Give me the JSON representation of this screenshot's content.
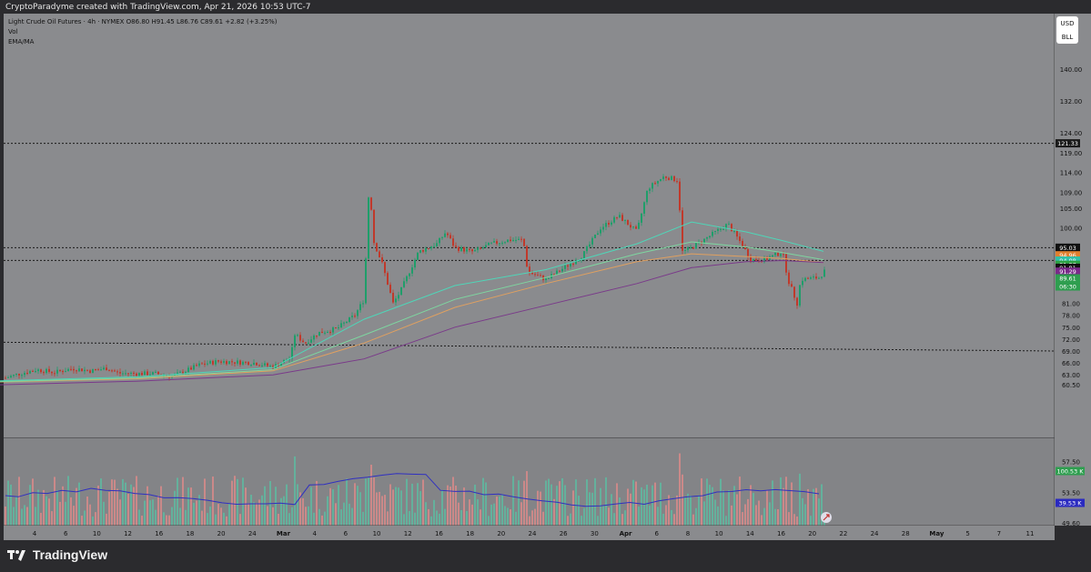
{
  "header": {
    "watermark": "CryptoParadyme created with TradingView.com, Apr 21, 2026 10:53 UTC-7",
    "symbol_line": "Light Crude Oil Futures · 4h · NYMEX  O86.80  H91.45  L86.76  C89.61  +2.82 (+3.25%)",
    "indicator_vol": "Vol",
    "indicator_ema": "EMA/MA"
  },
  "currency_buttons": {
    "currency": "USD",
    "unit": "BLL"
  },
  "brand": {
    "name": "TradingView",
    "icon": "tradingview-logo-icon"
  },
  "colors": {
    "background": "#8a8b8e",
    "up_candle": "#1f9e6a",
    "down_candle": "#c0392b",
    "ema_teal": "#4fd6b8",
    "ema_green": "#7ed6a0",
    "ma_orange": "#e0a060",
    "ma_purple": "#7a3a8a",
    "vol_ma_blue": "#3030c0"
  },
  "chart_data": {
    "type": "candlestick",
    "title": "Light Crude Oil Futures · 4h · NYMEX",
    "ylim": [
      47,
      154
    ],
    "x_tick_labels": [
      "4",
      "6",
      "10",
      "12",
      "16",
      "18",
      "20",
      "24",
      "Mar",
      "4",
      "6",
      "10",
      "12",
      "16",
      "18",
      "20",
      "24",
      "26",
      "30",
      "Apr",
      "6",
      "8",
      "10",
      "14",
      "16",
      "20",
      "22",
      "24",
      "28",
      "May",
      "5",
      "7",
      "11"
    ],
    "y_tick_labels": [
      "140.00",
      "132.00",
      "124.00",
      "119.00",
      "114.00",
      "109.00",
      "105.00",
      "100.00",
      "94.00",
      "89.00",
      "85.00",
      "81.00",
      "78.00",
      "75.00",
      "72.00",
      "69.00",
      "66.00",
      "63.00",
      "60.50",
      "57.50",
      "53.50",
      "49.60"
    ],
    "price_points": [
      [
        0,
        61.8
      ],
      [
        20,
        63.2
      ],
      [
        40,
        64.3
      ],
      [
        60,
        63.6
      ],
      [
        80,
        64.6
      ],
      [
        100,
        64.0
      ],
      [
        118,
        64.7
      ],
      [
        130,
        63.4
      ],
      [
        150,
        63.3
      ],
      [
        170,
        63.3
      ],
      [
        190,
        62.6
      ],
      [
        200,
        63.6
      ],
      [
        220,
        65.6
      ],
      [
        240,
        66.4
      ],
      [
        260,
        66.2
      ],
      [
        280,
        66.0
      ],
      [
        300,
        65.0
      ],
      [
        320,
        67.4
      ],
      [
        323,
        73.4
      ],
      [
        335,
        71.0
      ],
      [
        350,
        73.6
      ],
      [
        370,
        74.6
      ],
      [
        390,
        78.0
      ],
      [
        400,
        82.0
      ],
      [
        406,
        113.0
      ],
      [
        410,
        97.0
      ],
      [
        420,
        91.0
      ],
      [
        432,
        81.0
      ],
      [
        440,
        84.0
      ],
      [
        460,
        94.0
      ],
      [
        480,
        96.0
      ],
      [
        490,
        99.0
      ],
      [
        500,
        95.0
      ],
      [
        520,
        94.0
      ],
      [
        540,
        96.0
      ],
      [
        560,
        97.0
      ],
      [
        575,
        97.0
      ],
      [
        580,
        89.0
      ],
      [
        600,
        87.0
      ],
      [
        620,
        90.0
      ],
      [
        640,
        93.0
      ],
      [
        660,
        100.0
      ],
      [
        680,
        103.0
      ],
      [
        700,
        99.0
      ],
      [
        712,
        110.0
      ],
      [
        730,
        113.0
      ],
      [
        745,
        112.0
      ],
      [
        750,
        94.0
      ],
      [
        760,
        95.0
      ],
      [
        780,
        98.0
      ],
      [
        800,
        101.0
      ],
      [
        815,
        96.0
      ],
      [
        825,
        92.0
      ],
      [
        840,
        92.0
      ],
      [
        860,
        94.0
      ],
      [
        866,
        87.0
      ],
      [
        876,
        81.0
      ],
      [
        880,
        87.0
      ],
      [
        900,
        87.5
      ],
      [
        908,
        89.6
      ]
    ],
    "series": [
      {
        "name": "EMA/MA",
        "points": [
          [
            0,
            61.2
          ],
          [
            150,
            62.0
          ],
          [
            300,
            64.0
          ],
          [
            400,
            71.0
          ],
          [
            500,
            80.0
          ],
          [
            600,
            86.0
          ],
          [
            700,
            91.5
          ],
          [
            760,
            93.5
          ],
          [
            820,
            92.8
          ],
          [
            860,
            92.3
          ],
          [
            905,
            91.3
          ]
        ]
      },
      {
        "points": [
          [
            0,
            61.5
          ],
          [
            150,
            62.5
          ],
          [
            300,
            64.8
          ],
          [
            400,
            77.0
          ],
          [
            500,
            85.5
          ],
          [
            600,
            89.5
          ],
          [
            700,
            96.0
          ],
          [
            760,
            101.5
          ],
          [
            820,
            99.0
          ],
          [
            860,
            96.8
          ],
          [
            905,
            94.1
          ]
        ]
      },
      {
        "points": [
          [
            0,
            61.3
          ],
          [
            150,
            62.2
          ],
          [
            300,
            64.3
          ],
          [
            400,
            73.0
          ],
          [
            500,
            82.0
          ],
          [
            600,
            87.5
          ],
          [
            700,
            93.5
          ],
          [
            760,
            96.5
          ],
          [
            820,
            95.2
          ],
          [
            860,
            93.8
          ],
          [
            905,
            92.0
          ]
        ]
      },
      {
        "points": [
          [
            0,
            60.5
          ],
          [
            150,
            61.4
          ],
          [
            300,
            63.0
          ],
          [
            400,
            67.0
          ],
          [
            450,
            71.0
          ],
          [
            500,
            75.0
          ],
          [
            600,
            80.5
          ],
          [
            700,
            86.0
          ],
          [
            760,
            90.0
          ],
          [
            820,
            91.5
          ],
          [
            860,
            91.8
          ],
          [
            905,
            91.3
          ]
        ]
      }
    ],
    "volume_ma": "Vol MA",
    "price_labels": [
      {
        "text": "121.33",
        "bg": "#1a1a1a"
      },
      {
        "text": "95.03",
        "bg": "#111111"
      },
      {
        "text": "94.96",
        "bg": "#e08030"
      },
      {
        "text": "94.08",
        "bg": "#30c0a8"
      },
      {
        "text": "91.87",
        "bg": "#2ea043"
      },
      {
        "text": "91.81",
        "bg": "#111111"
      },
      {
        "text": "91.29",
        "bg": "#7a2a8a"
      },
      {
        "text": "89.61",
        "bg": "#2e9e4f"
      },
      {
        "text": "06:30",
        "bg": "#2e9e4f"
      }
    ],
    "volume_labels": [
      {
        "text": "100.53 K",
        "bg": "#2e9e4f"
      },
      {
        "text": "39.53 K",
        "bg": "#2a2ac0"
      }
    ]
  }
}
